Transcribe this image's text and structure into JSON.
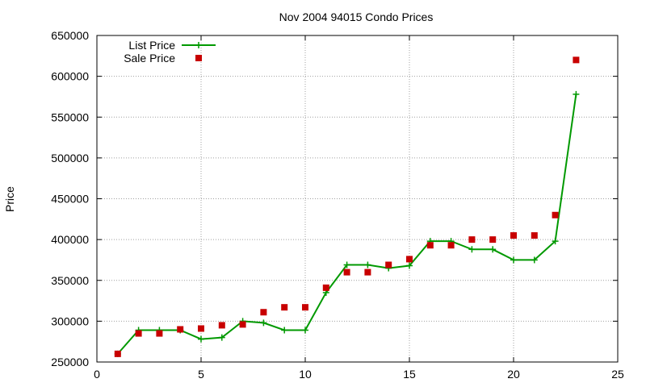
{
  "chart_data": {
    "type": "line",
    "title": "Nov 2004 94015 Condo Prices",
    "xlabel": "",
    "ylabel": "Price",
    "xlim": [
      0,
      25
    ],
    "ylim": [
      250000,
      650000
    ],
    "x_ticks": [
      0,
      5,
      10,
      15,
      20,
      25
    ],
    "y_ticks": [
      250000,
      300000,
      350000,
      400000,
      450000,
      500000,
      550000,
      600000,
      650000
    ],
    "grid": true,
    "legend_position": "top-left",
    "series": [
      {
        "name": "List Price",
        "style": "lines+crosses",
        "color": "#009900",
        "x": [
          1,
          2,
          3,
          4,
          5,
          6,
          7,
          8,
          9,
          10,
          11,
          12,
          13,
          14,
          15,
          16,
          17,
          18,
          19,
          20,
          21,
          22,
          23
        ],
        "y": [
          260000,
          289000,
          289000,
          289000,
          278000,
          280000,
          300000,
          298000,
          289000,
          289000,
          335000,
          369000,
          369000,
          365000,
          368000,
          398000,
          398000,
          388000,
          388000,
          375000,
          375000,
          398000,
          578000
        ]
      },
      {
        "name": "Sale Price",
        "style": "squares",
        "color": "#c80000",
        "x": [
          1,
          2,
          3,
          4,
          5,
          6,
          7,
          8,
          9,
          10,
          11,
          12,
          13,
          14,
          15,
          16,
          17,
          18,
          19,
          20,
          21,
          22,
          23
        ],
        "y": [
          260000,
          285000,
          285000,
          290000,
          291000,
          295000,
          296000,
          311000,
          317000,
          317000,
          341000,
          360000,
          360000,
          369000,
          376000,
          393000,
          393000,
          400000,
          400000,
          405000,
          405000,
          430000,
          620000
        ]
      }
    ]
  }
}
